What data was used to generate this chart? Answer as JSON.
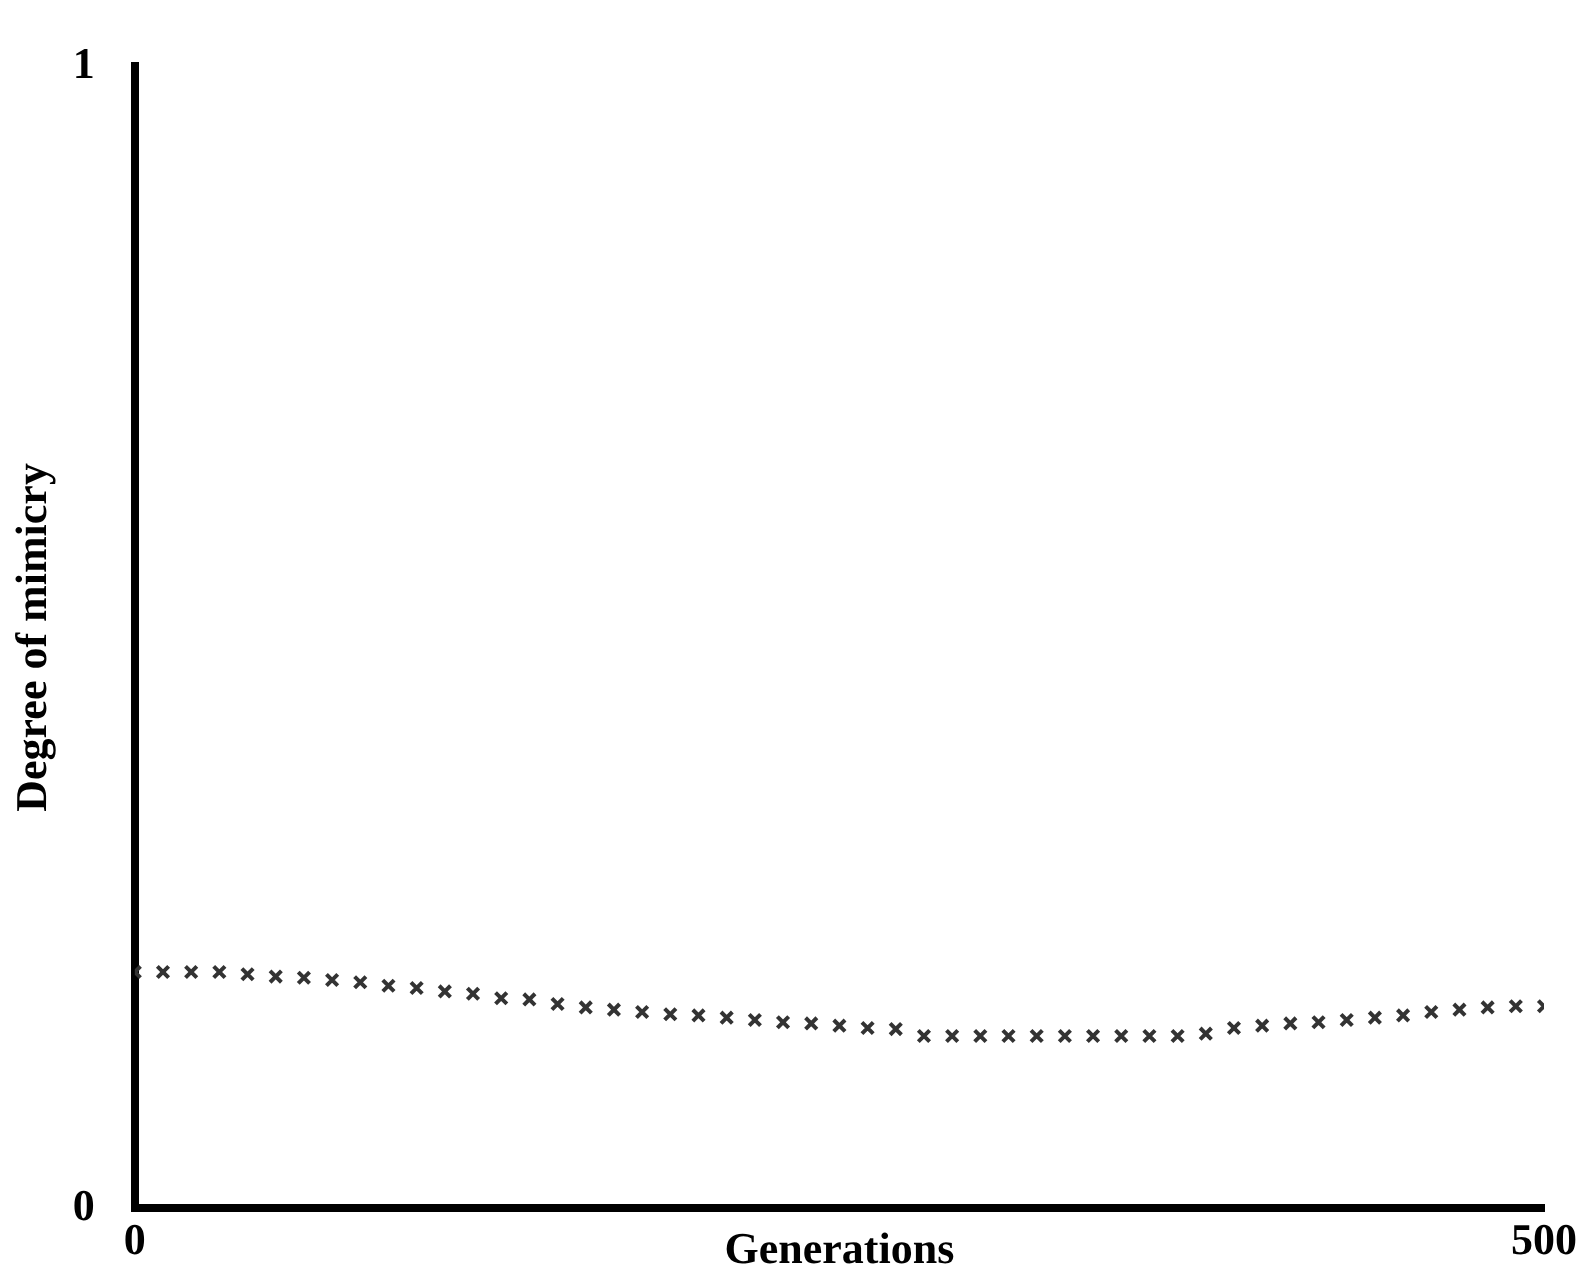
{
  "chart_data": {
    "type": "scatter",
    "xlabel": "Generations",
    "ylabel": "Degree of mimicry",
    "x": [
      0,
      10,
      20,
      30,
      40,
      50,
      60,
      70,
      80,
      90,
      100,
      110,
      120,
      130,
      140,
      150,
      160,
      170,
      180,
      190,
      200,
      210,
      220,
      230,
      240,
      250,
      260,
      270,
      280,
      290,
      300,
      310,
      320,
      330,
      340,
      350,
      360,
      370,
      380,
      390,
      400,
      410,
      420,
      430,
      440,
      450,
      460,
      470,
      480,
      490,
      500
    ],
    "series": [
      {
        "color": "#333333",
        "values": [
          0.207,
          0.207,
          0.207,
          0.207,
          0.205,
          0.203,
          0.202,
          0.2,
          0.198,
          0.195,
          0.193,
          0.19,
          0.188,
          0.184,
          0.183,
          0.179,
          0.176,
          0.174,
          0.172,
          0.17,
          0.169,
          0.167,
          0.165,
          0.163,
          0.162,
          0.16,
          0.158,
          0.157,
          0.151,
          0.151,
          0.151,
          0.151,
          0.151,
          0.151,
          0.151,
          0.151,
          0.151,
          0.151,
          0.153,
          0.158,
          0.16,
          0.162,
          0.163,
          0.165,
          0.167,
          0.169,
          0.172,
          0.174,
          0.176,
          0.177,
          0.177
        ]
      }
    ],
    "xlim": [
      0,
      500
    ],
    "xticks": [
      0,
      500
    ],
    "ylim": [
      0,
      1
    ],
    "yticks": [
      0,
      1
    ],
    "grid": false,
    "legend": false,
    "marker": "cross"
  }
}
